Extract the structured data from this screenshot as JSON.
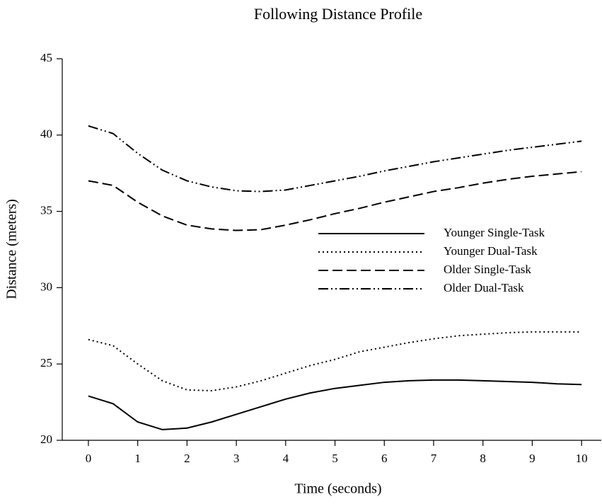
{
  "chart_data": {
    "type": "line",
    "title": "Following Distance Profile",
    "x_label": "Time (seconds)",
    "y_label": "Distance (meters)",
    "x": [
      0,
      0.5,
      1,
      1.5,
      2,
      2.5,
      3,
      3.5,
      4,
      4.5,
      5,
      5.5,
      6,
      6.5,
      7,
      7.5,
      8,
      8.5,
      9,
      9.5,
      10
    ],
    "series": [
      {
        "name": "Younger Single-Task",
        "color": "#000000",
        "dash": "solid",
        "values": [
          22.9,
          22.4,
          21.2,
          20.7,
          20.8,
          21.2,
          21.7,
          22.2,
          22.7,
          23.1,
          23.4,
          23.6,
          23.8,
          23.9,
          23.95,
          23.95,
          23.9,
          23.85,
          23.8,
          23.7,
          23.65
        ]
      },
      {
        "name": "Younger Dual-Task",
        "color": "#000000",
        "dash": "dotted",
        "values": [
          26.6,
          26.2,
          25.0,
          23.9,
          23.3,
          23.25,
          23.5,
          23.9,
          24.4,
          24.9,
          25.3,
          25.8,
          26.1,
          26.4,
          26.65,
          26.85,
          26.95,
          27.05,
          27.1,
          27.1,
          27.1
        ]
      },
      {
        "name": "Older Single-Task",
        "color": "#000000",
        "dash": "dashed",
        "values": [
          37.0,
          36.7,
          35.6,
          34.7,
          34.1,
          33.85,
          33.75,
          33.8,
          34.1,
          34.45,
          34.85,
          35.2,
          35.6,
          35.95,
          36.3,
          36.55,
          36.85,
          37.1,
          37.3,
          37.45,
          37.6
        ]
      },
      {
        "name": "Older Dual-Task",
        "color": "#000000",
        "dash": "dashdotdot",
        "values": [
          40.6,
          40.1,
          38.8,
          37.7,
          37.0,
          36.6,
          36.35,
          36.3,
          36.4,
          36.7,
          37.0,
          37.3,
          37.65,
          37.95,
          38.25,
          38.5,
          38.75,
          39.0,
          39.2,
          39.4,
          39.6
        ]
      }
    ],
    "xlim": [
      -0.53,
      10.4
    ],
    "ylim": [
      20,
      45
    ],
    "xticks": [
      0,
      1,
      2,
      3,
      4,
      5,
      6,
      7,
      8,
      9,
      10
    ],
    "yticks": [
      20,
      25,
      30,
      35,
      40,
      45
    ],
    "grid": false,
    "legend": "center-right"
  }
}
